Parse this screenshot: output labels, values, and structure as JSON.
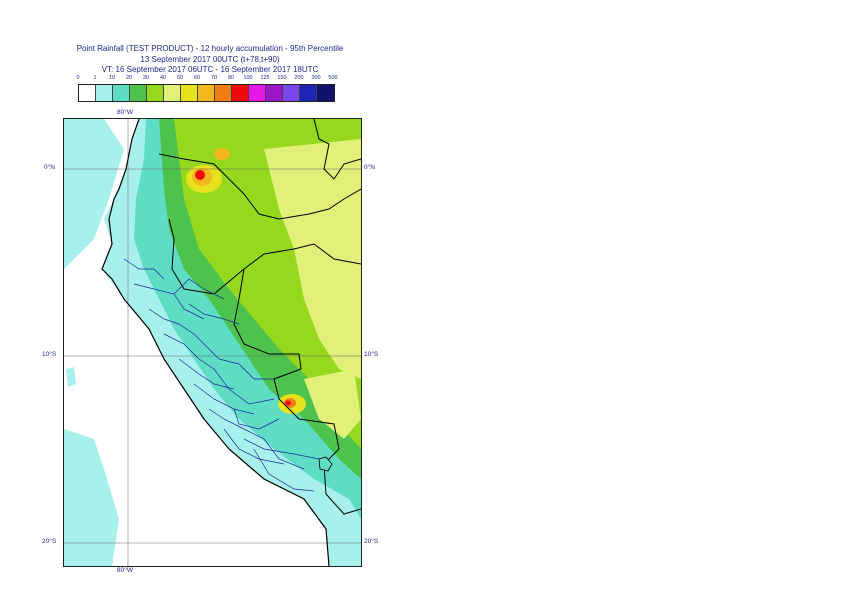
{
  "title": {
    "line1": "Point Rainfall (TEST PRODUCT) - 12 hourly accumulation - 95th Percentile",
    "line2": "13 September 2017 00UTC (t+78,t+90)",
    "line3": "VT: 16 September 2017 06UTC - 16 September 2017 18UTC"
  },
  "legend": {
    "ticks": [
      "0",
      "1",
      "10",
      "20",
      "30",
      "40",
      "50",
      "60",
      "70",
      "80",
      "100",
      "125",
      "150",
      "200",
      "300",
      "500"
    ],
    "colors": [
      "#ffffff",
      "#a8f0ec",
      "#5fdcc4",
      "#4dc24d",
      "#95d81e",
      "#e0f078",
      "#e6e21e",
      "#f2b81e",
      "#f07e14",
      "#f00a0a",
      "#e616e6",
      "#9a16c8",
      "#7a46f0",
      "#1e24b4",
      "#10106e"
    ]
  },
  "axes": {
    "lon_top": "80°W",
    "lon_bottom": "80°W",
    "lat_0_left": "0°N",
    "lat_0_right": "0°N",
    "lat_10_left": "10°S",
    "lat_10_right": "10°S",
    "lat_20_left": "20°S",
    "lat_20_right": "20°S"
  },
  "map": {
    "region": "Peru / Ecuador",
    "ocean_color": "#ffffff",
    "dominant_colors": [
      "#a8f0ec",
      "#95d81e",
      "#e0f078",
      "#f2b81e",
      "#f00a0a"
    ]
  }
}
